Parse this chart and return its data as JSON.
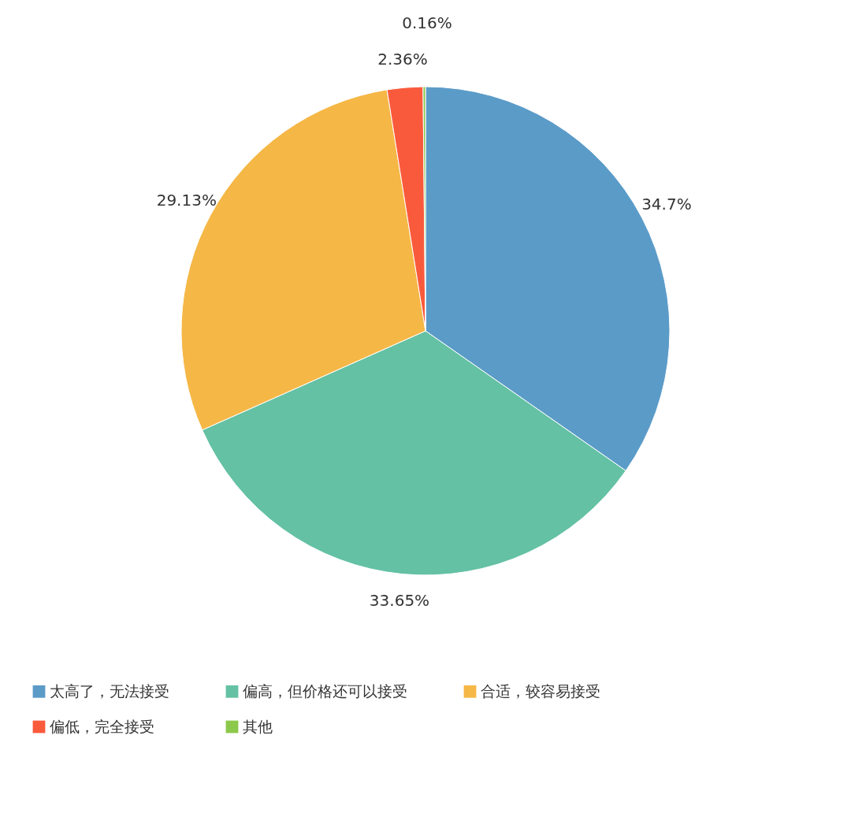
{
  "chart_data": {
    "type": "pie",
    "categories": [
      "太高了，无法接受",
      "偏高，但价格还可以接受",
      "合适，较容易接受",
      "偏低，完全接受",
      "其他"
    ],
    "values": [
      34.7,
      33.65,
      29.13,
      2.36,
      0.16
    ],
    "colors": [
      "#5b9bc8",
      "#64c1a4",
      "#f5b746",
      "#fa5a3c",
      "#8cc84b"
    ],
    "value_labels": [
      "34.7%",
      "33.65%",
      "29.13%",
      "2.36%",
      "0.16%"
    ],
    "legend": "bottom"
  }
}
